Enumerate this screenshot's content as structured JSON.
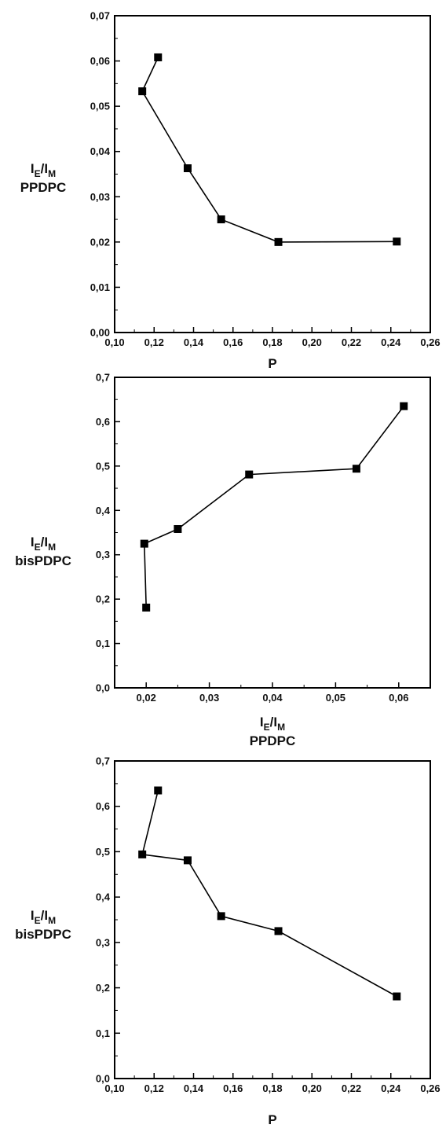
{
  "chart_data": [
    {
      "type": "line",
      "xlabel": "P",
      "ylabel": {
        "main": "I",
        "sub1": "E",
        "slash": "/",
        "main2": "I",
        "sub2": "M",
        "line2": "PPDPC"
      },
      "xlim": [
        0.1,
        0.26
      ],
      "ylim": [
        0.0,
        0.07
      ],
      "xticks": [
        0.1,
        0.12,
        0.14,
        0.16,
        0.18,
        0.2,
        0.22,
        0.24,
        0.26
      ],
      "xtick_labels": [
        "0,10",
        "0,12",
        "0,14",
        "0,16",
        "0,18",
        "0,20",
        "0,22",
        "0,24",
        "0,26"
      ],
      "yticks": [
        0.0,
        0.01,
        0.02,
        0.03,
        0.04,
        0.05,
        0.06,
        0.07
      ],
      "ytick_labels": [
        "0,00",
        "0,01",
        "0,02",
        "0,03",
        "0,04",
        "0,05",
        "0,06",
        "0,07"
      ],
      "grid": false,
      "series": [
        {
          "x": [
            0.122,
            0.114,
            0.137,
            0.154,
            0.183,
            0.243
          ],
          "y": [
            0.0608,
            0.0533,
            0.0363,
            0.025,
            0.02,
            0.0201
          ],
          "marker": "square",
          "color": "#000000"
        }
      ]
    },
    {
      "type": "line",
      "xlabel": {
        "main": "I",
        "sub1": "E",
        "slash": "/",
        "main2": "I",
        "sub2": "M",
        "line2": "PPDPC"
      },
      "ylabel": {
        "main": "I",
        "sub1": "E",
        "slash": "/",
        "main2": "I",
        "sub2": "M",
        "line2": "bisPDPC"
      },
      "xlim": [
        0.015,
        0.065
      ],
      "ylim": [
        0.0,
        0.7
      ],
      "xticks": [
        0.02,
        0.03,
        0.04,
        0.05,
        0.06
      ],
      "xtick_labels": [
        "0,02",
        "0,03",
        "0,04",
        "0,05",
        "0,06"
      ],
      "yticks": [
        0.0,
        0.1,
        0.2,
        0.3,
        0.4,
        0.5,
        0.6,
        0.7
      ],
      "ytick_labels": [
        "0,0",
        "0,1",
        "0,2",
        "0,3",
        "0,4",
        "0,5",
        "0,6",
        "0,7"
      ],
      "grid": false,
      "series": [
        {
          "x": [
            0.02,
            0.0197,
            0.025,
            0.0363,
            0.0533,
            0.0608
          ],
          "y": [
            0.181,
            0.325,
            0.358,
            0.481,
            0.494,
            0.635
          ],
          "marker": "square",
          "color": "#000000"
        }
      ]
    },
    {
      "type": "line",
      "xlabel": "P",
      "ylabel": {
        "main": "I",
        "sub1": "E",
        "slash": "/",
        "main2": "I",
        "sub2": "M",
        "line2": "bisPDPC"
      },
      "xlim": [
        0.1,
        0.26
      ],
      "ylim": [
        0.0,
        0.7
      ],
      "xticks": [
        0.1,
        0.12,
        0.14,
        0.16,
        0.18,
        0.2,
        0.22,
        0.24,
        0.26
      ],
      "xtick_labels": [
        "0,10",
        "0,12",
        "0,14",
        "0,16",
        "0,18",
        "0,20",
        "0,22",
        "0,24",
        "0,26"
      ],
      "yticks": [
        0.0,
        0.1,
        0.2,
        0.3,
        0.4,
        0.5,
        0.6,
        0.7
      ],
      "ytick_labels": [
        "0,0",
        "0,1",
        "0,2",
        "0,3",
        "0,4",
        "0,5",
        "0,6",
        "0,7"
      ],
      "grid": false,
      "series": [
        {
          "x": [
            0.122,
            0.114,
            0.137,
            0.154,
            0.183,
            0.243
          ],
          "y": [
            0.635,
            0.494,
            0.481,
            0.358,
            0.325,
            0.181
          ],
          "marker": "square",
          "color": "#000000"
        }
      ]
    }
  ]
}
